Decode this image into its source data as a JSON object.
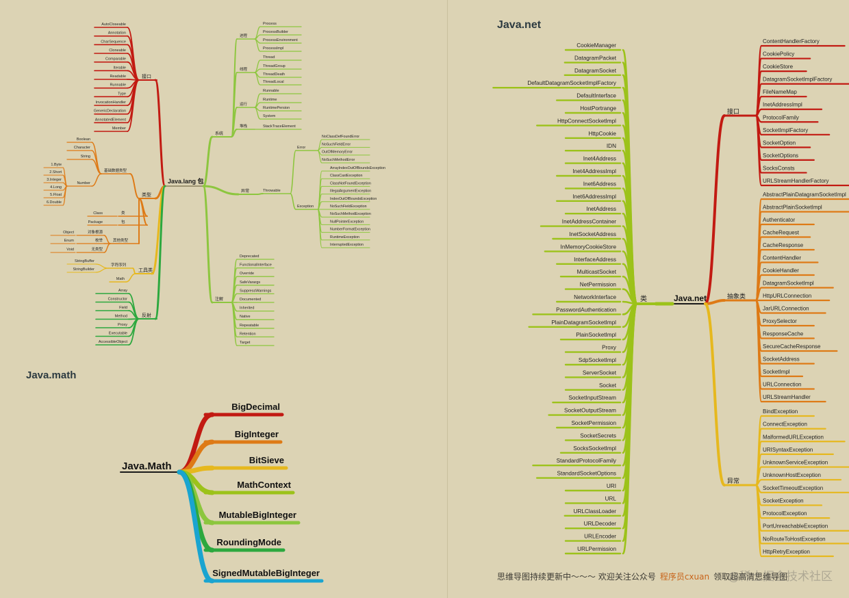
{
  "titles": {
    "lang": "Java.lang 包",
    "math": "Java.math",
    "net": "Java.net"
  },
  "colors": {
    "background": "#dcd3b4",
    "red": "#c21a12",
    "orange": "#de7a16",
    "yellow": "#e6b81e",
    "lightgreen": "#8cc63e",
    "limegreen": "#9cc21a",
    "green": "#2ca83e",
    "blue": "#1aa4d0"
  },
  "lang": {
    "root": "Java.lang 包",
    "left": [
      {
        "label": "接口",
        "color": "red",
        "children": [
          {
            "label": "AutoCloseable"
          },
          {
            "label": "Annotation"
          },
          {
            "label": "CharSequence"
          },
          {
            "label": "Cloneable"
          },
          {
            "label": "Comparable"
          },
          {
            "label": "Iterable"
          },
          {
            "label": "Readable"
          },
          {
            "label": "Runnable"
          },
          {
            "label": "Type"
          },
          {
            "label": "InvocationHandler"
          },
          {
            "label": "GenericDeclaration"
          },
          {
            "label": "AnnotatedElement"
          },
          {
            "label": "Member"
          }
        ]
      },
      {
        "label": "类型",
        "color": "orange",
        "children": [
          {
            "label": "基础数据类型",
            "children": [
              {
                "label": "Boolean"
              },
              {
                "label": "Character"
              },
              {
                "label": "String"
              },
              {
                "label": "Number",
                "children": [
                  {
                    "label": "1.Byte"
                  },
                  {
                    "label": "2.Short"
                  },
                  {
                    "label": "3.Integer"
                  },
                  {
                    "label": "4.Long"
                  },
                  {
                    "label": "5.Float"
                  },
                  {
                    "label": "6.Double"
                  }
                ]
              }
            ]
          },
          {
            "label": "类",
            "children": [
              {
                "label": "Class"
              }
            ]
          },
          {
            "label": "包",
            "children": [
              {
                "label": "Package"
              }
            ]
          },
          {
            "label": "其他类型",
            "children": [
              {
                "label": "对象根源",
                "children": [
                  {
                    "label": "Object"
                  }
                ]
              },
              {
                "label": "枚举",
                "children": [
                  {
                    "label": "Enum"
                  }
                ]
              },
              {
                "label": "无类型",
                "children": [
                  {
                    "label": "Void"
                  }
                ]
              }
            ]
          }
        ]
      },
      {
        "label": "工具类",
        "color": "yellow",
        "children": [
          {
            "label": "字符序列",
            "children": [
              {
                "label": "StringBuffer"
              },
              {
                "label": "StringBuilder"
              }
            ]
          },
          {
            "label": "Math"
          }
        ]
      },
      {
        "label": "反射",
        "color": "green",
        "children": [
          {
            "label": "Array"
          },
          {
            "label": "Constructor"
          },
          {
            "label": "Field"
          },
          {
            "label": "Method"
          },
          {
            "label": "Proxy"
          },
          {
            "label": "Executable"
          },
          {
            "label": "AccessibleObject"
          }
        ]
      }
    ],
    "right": [
      {
        "label": "系统",
        "children": [
          {
            "label": "进程",
            "children": [
              {
                "label": "Process"
              },
              {
                "label": "ProcessBuilder"
              },
              {
                "label": "ProcessEnvironment"
              },
              {
                "label": "ProcessImpl"
              }
            ]
          },
          {
            "label": "线程",
            "children": [
              {
                "label": "Thread"
              },
              {
                "label": "ThreadGroup"
              },
              {
                "label": "ThreadDeath"
              },
              {
                "label": "ThreadLocal"
              }
            ]
          },
          {
            "label": "运行",
            "children": [
              {
                "label": "Runnable"
              },
              {
                "label": "Runtime"
              },
              {
                "label": "RuntimePersion"
              },
              {
                "label": "System"
              }
            ]
          },
          {
            "label": "堆栈",
            "children": [
              {
                "label": "StackTraceElement"
              }
            ]
          }
        ]
      },
      {
        "label": "异常",
        "children": [
          {
            "label": "Throwable",
            "children": [
              {
                "label": "Error",
                "children": [
                  {
                    "label": "NoClassDefFoundError"
                  },
                  {
                    "label": "NoSuchFieldError"
                  },
                  {
                    "label": "OutOfMemoryError"
                  },
                  {
                    "label": "NoSuchMethodError"
                  }
                ]
              },
              {
                "label": "Exception",
                "children": [
                  {
                    "label": "ArrayIndexOutOfBoundsException"
                  },
                  {
                    "label": "ClassCastException"
                  },
                  {
                    "label": "ClassNotFoundException"
                  },
                  {
                    "label": "IllegalArgumentException"
                  },
                  {
                    "label": "IndexOutOfBoundsException"
                  },
                  {
                    "label": "NoSuchFieldException"
                  },
                  {
                    "label": "NoSuchMethodException"
                  },
                  {
                    "label": "NullPointerException"
                  },
                  {
                    "label": "NumberFormatException"
                  },
                  {
                    "label": "RuntimeException"
                  },
                  {
                    "label": "InterruptedException"
                  }
                ]
              }
            ]
          }
        ]
      },
      {
        "label": "注解",
        "children": [
          {
            "label": "Deprecated"
          },
          {
            "label": "FunctionalInterface"
          },
          {
            "label": "Override"
          },
          {
            "label": "SafeVarargs"
          },
          {
            "label": "SuppressWarnings"
          },
          {
            "label": "Documented"
          },
          {
            "label": "Inherited"
          },
          {
            "label": "Native"
          },
          {
            "label": "Repeatable"
          },
          {
            "label": "Retention"
          },
          {
            "label": "Target"
          }
        ]
      }
    ]
  },
  "math": {
    "root": "Java.Math",
    "children": [
      {
        "label": "BigDecimal",
        "color": "red"
      },
      {
        "label": "BigInteger",
        "color": "orange"
      },
      {
        "label": "BitSieve",
        "color": "yellow"
      },
      {
        "label": "MathContext",
        "color": "limegreen"
      },
      {
        "label": "MutableBigInteger",
        "color": "lightgreen"
      },
      {
        "label": "RoundingMode",
        "color": "green"
      },
      {
        "label": "SignedMutableBigInteger",
        "color": "blue"
      }
    ]
  },
  "net": {
    "root": "Java.net",
    "classes_label": "类",
    "classes": [
      "CookieManager",
      "DatagramPacket",
      "DatagramSocket",
      "DefaultDatagramSocketImplFactory",
      "DefaultInterface",
      "HostPortrange",
      "HttpConnectSocketImpl",
      "HttpCookie",
      "IDN",
      "Inet4Address",
      "Inet4AddressImpl",
      "Inet6Address",
      "Inet6AddressImpl",
      "InetAddress",
      "InetAddressContainer",
      "InetSocketAddress",
      "InMemoryCookieStore",
      "InterfaceAddress",
      "MulticastSocket",
      "NetPermission",
      "NetworkInterface",
      "PasswordAuthentication",
      "PlainDatagramSocketImpl",
      "PlainSocketImpl",
      "Proxy",
      "SdpSocketImpl",
      "ServerSocket",
      "Socket",
      "SocketInputStream",
      "SocketOutputStream",
      "SocketPermission",
      "SocketSecrets",
      "SocksSocketImpl",
      "StandardProtocolFamily",
      "StandardSocketOptions",
      "URI",
      "URL",
      "URLClassLoader",
      "URLDecoder",
      "URLEncoder",
      "URLPermission"
    ],
    "interfaces_label": "接口",
    "interfaces": [
      "ContentHandlerFactory",
      "CookiePolicy",
      "CookieStore",
      "DatagramSocketImplFactory",
      "FileNameMap",
      "InetAddressImpl",
      "ProtocolFamily",
      "SocketImplFactory",
      "SocketOption",
      "SocketOptions",
      "SocksConsts",
      "URLStreamHandlerFactory"
    ],
    "abstract_label": "抽象类",
    "abstract": [
      "AbstractPlainDatagramSocketImpl",
      "AbstractPlainSocketImpl",
      "Authenticator",
      "CacheRequest",
      "CacheResponse",
      "ContentHandler",
      "CookieHandler",
      "DatagramSocketImpl",
      "HttpURLConnection",
      "JarURLConnection",
      "ProxySelector",
      "ResponseCache",
      "SecureCacheResponse",
      "SocketAddress",
      "SocketImpl",
      "URLConnection",
      "URLStreamHandler"
    ],
    "exceptions_label": "异常",
    "exceptions": [
      "BindException",
      "ConnectException",
      "MalformedURLException",
      "URISyntaxException",
      "UnknownServiceException",
      "UnknownHostException",
      "SocketTimeoutException",
      "SocketException",
      "ProtocolException",
      "PortUnreachableException",
      "NoRouteToHostException",
      "HttpRetryException"
    ]
  },
  "footer": {
    "text": "思维导图持续更新中～～～ 欢迎关注公众号",
    "account": "程序员cxuan",
    "tail": "领取超高清思维导图"
  },
  "watermark": "@稀土掘金技术社区"
}
